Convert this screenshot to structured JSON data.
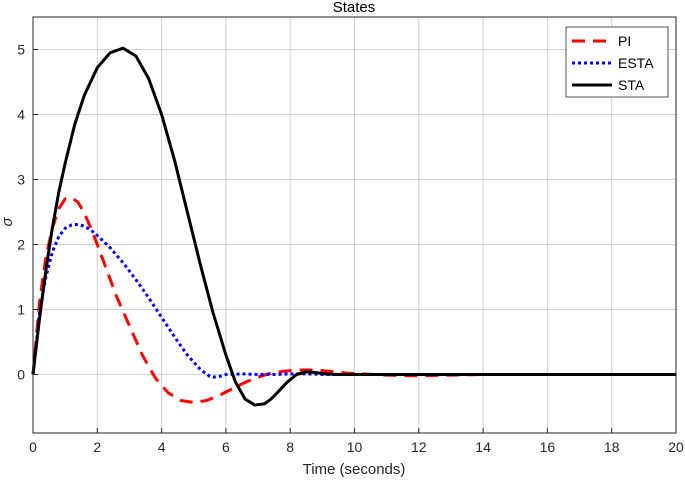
{
  "chart_data": {
    "type": "line",
    "title": "States",
    "xlabel": "Time (seconds)",
    "ylabel": "σ",
    "xlim": [
      0,
      20
    ],
    "ylim": [
      -0.9,
      5.5
    ],
    "xticks": [
      "0",
      "2",
      "4",
      "6",
      "8",
      "10",
      "12",
      "14",
      "16",
      "18",
      "20"
    ],
    "yticks": [
      "0",
      "1",
      "2",
      "3",
      "4",
      "5"
    ],
    "grid": true,
    "legend_position": "top-right",
    "series": [
      {
        "name": "PI",
        "color": "#ff0000",
        "style": "dashed",
        "x": [
          0,
          0.2,
          0.4,
          0.6,
          0.8,
          1.0,
          1.2,
          1.4,
          1.6,
          1.8,
          2.0,
          2.3,
          2.6,
          3.0,
          3.4,
          3.8,
          4.2,
          4.6,
          5.0,
          5.4,
          5.8,
          6.2,
          6.6,
          7.0,
          7.4,
          7.8,
          8.2,
          8.6,
          9.0,
          9.4,
          9.8,
          10.2,
          11.0,
          12.0,
          13.0,
          14.0,
          16.0,
          18.0,
          20.0
        ],
        "y": [
          0,
          1.1,
          1.8,
          2.25,
          2.55,
          2.7,
          2.72,
          2.65,
          2.48,
          2.25,
          2.0,
          1.6,
          1.2,
          0.75,
          0.3,
          -0.05,
          -0.28,
          -0.4,
          -0.43,
          -0.4,
          -0.32,
          -0.22,
          -0.12,
          -0.04,
          0.02,
          0.05,
          0.07,
          0.07,
          0.06,
          0.04,
          0.02,
          0.01,
          -0.01,
          -0.02,
          -0.01,
          0.0,
          0.0,
          0.0,
          0.0
        ]
      },
      {
        "name": "ESTA",
        "color": "#0000ff",
        "style": "dotted",
        "x": [
          0,
          0.2,
          0.4,
          0.6,
          0.8,
          1.0,
          1.2,
          1.4,
          1.6,
          1.8,
          2.0,
          2.4,
          2.8,
          3.2,
          3.6,
          4.0,
          4.4,
          4.8,
          5.2,
          5.5,
          5.6,
          5.8,
          6.0,
          6.5,
          7.0,
          7.5,
          8.0,
          8.5,
          9.0,
          10.0,
          12.0,
          14.0,
          16.0,
          18.0,
          20.0
        ],
        "y": [
          0,
          0.95,
          1.5,
          1.88,
          2.12,
          2.25,
          2.3,
          2.31,
          2.28,
          2.22,
          2.14,
          1.95,
          1.72,
          1.46,
          1.18,
          0.88,
          0.58,
          0.3,
          0.08,
          -0.03,
          -0.04,
          -0.03,
          0.0,
          0.01,
          0.0,
          0.0,
          0.01,
          0.01,
          0.0,
          0.0,
          0.0,
          0.0,
          0.0,
          0.0,
          0.0
        ]
      },
      {
        "name": "STA",
        "color": "#000000",
        "style": "solid",
        "x": [
          0,
          0.2,
          0.4,
          0.6,
          0.8,
          1.0,
          1.3,
          1.6,
          2.0,
          2.4,
          2.8,
          3.2,
          3.6,
          4.0,
          4.4,
          4.8,
          5.2,
          5.6,
          6.0,
          6.3,
          6.6,
          6.9,
          7.2,
          7.4,
          7.6,
          7.9,
          8.2,
          8.5,
          8.8,
          9.1,
          9.5,
          10.0,
          12.0,
          14.0,
          16.0,
          18.0,
          20.0
        ],
        "y": [
          0,
          0.85,
          1.6,
          2.25,
          2.8,
          3.25,
          3.85,
          4.3,
          4.72,
          4.95,
          5.02,
          4.9,
          4.55,
          4.0,
          3.3,
          2.5,
          1.7,
          0.95,
          0.3,
          -0.12,
          -0.38,
          -0.47,
          -0.45,
          -0.38,
          -0.28,
          -0.12,
          0.0,
          0.04,
          0.03,
          0.01,
          0.0,
          0.0,
          0.0,
          0.0,
          0.0,
          0.0,
          0.0
        ]
      }
    ]
  }
}
